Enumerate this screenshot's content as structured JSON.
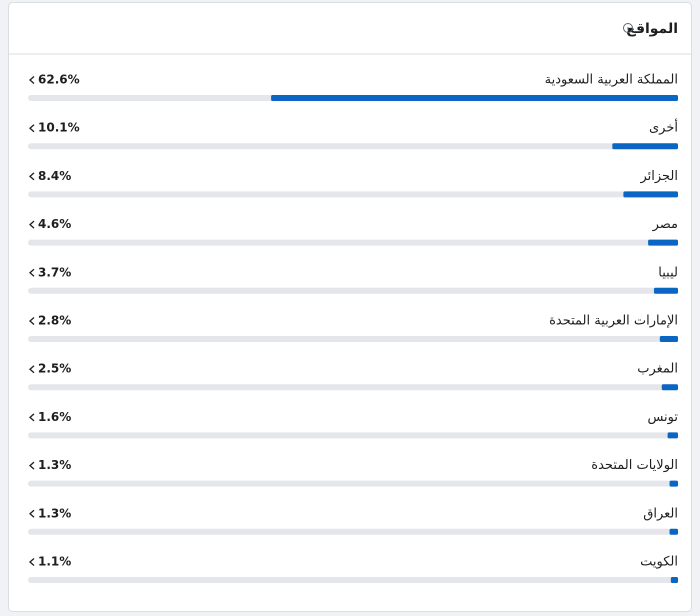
{
  "chart_data": {
    "type": "bar",
    "orientation": "horizontal",
    "title": "المواقع",
    "categories": [
      "المملكة العربية السعودية",
      "أخرى",
      "الجزائر",
      "مصر",
      "ليبيا",
      "الإمارات العربية المتحدة",
      "المغرب",
      "تونس",
      "الولايات المتحدة",
      "العراق",
      "الكويت"
    ],
    "values": [
      62.6,
      10.1,
      8.4,
      4.6,
      3.7,
      2.8,
      2.5,
      1.6,
      1.3,
      1.3,
      1.1
    ],
    "value_labels": [
      "62.6%",
      "10.1%",
      "8.4%",
      "4.6%",
      "3.7%",
      "2.8%",
      "2.5%",
      "1.6%",
      "1.3%",
      "1.3%",
      "1.1%"
    ],
    "xlim": [
      0,
      100
    ],
    "color": "#0a66c2",
    "track_color": "#e4e6eb"
  }
}
